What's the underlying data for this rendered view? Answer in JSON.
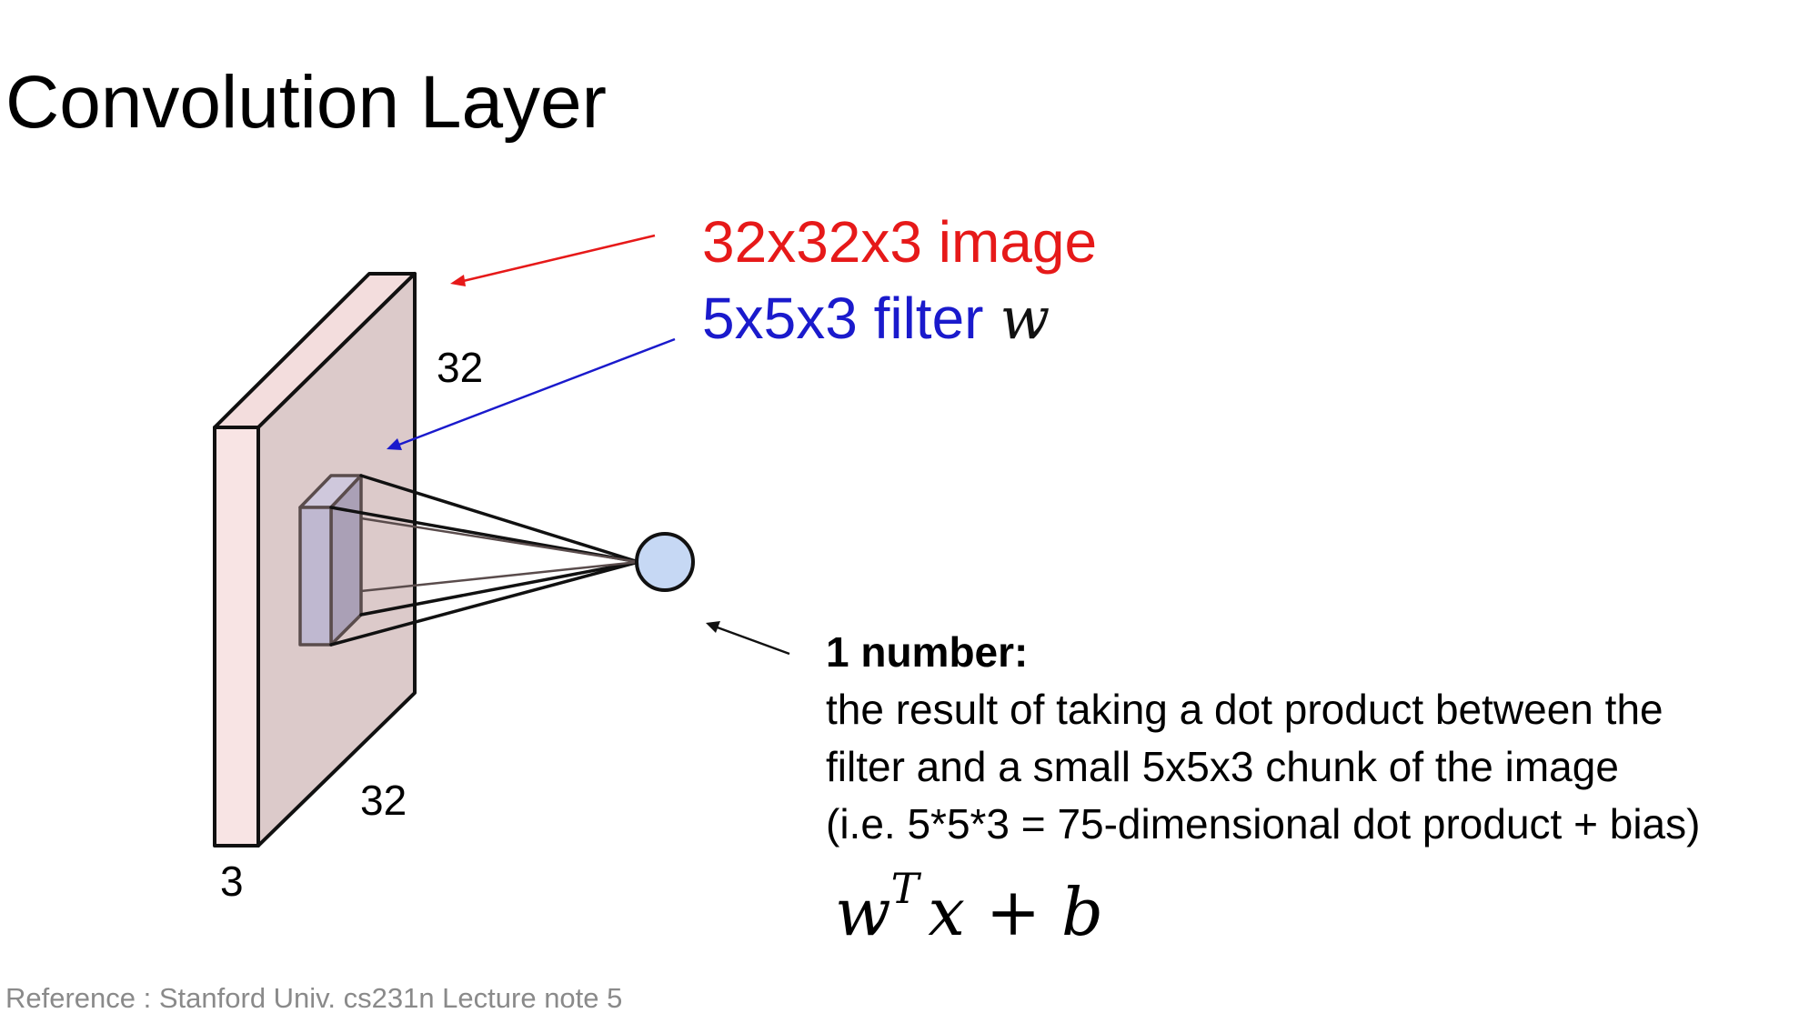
{
  "title": "Convolution Layer",
  "labels": {
    "image": "32x32x3 image",
    "filter": "5x5x3 filter",
    "filter_symbol": "w"
  },
  "dimensions": {
    "height": "32",
    "width": "32",
    "depth": "3"
  },
  "description": {
    "heading": "1 number:",
    "lines": [
      "the result of taking a dot product between the",
      "filter and a small 5x5x3 chunk of the image",
      "(i.e. 5*5*3 = 75-dimensional dot product + bias)"
    ]
  },
  "formula": {
    "base": "w",
    "superscript": "T",
    "rest": "x + b"
  },
  "reference": "Reference : Stanford Univ. cs231n Lecture note 5",
  "colors": {
    "image_label": "#e61919",
    "filter_label": "#1a1acc",
    "volume_face": "#dccaca",
    "volume_side": "#f8e4e4",
    "filter_front": "#bfb8d0",
    "filter_side": "#aaa0b6",
    "neuron": "#c6d8f4"
  }
}
